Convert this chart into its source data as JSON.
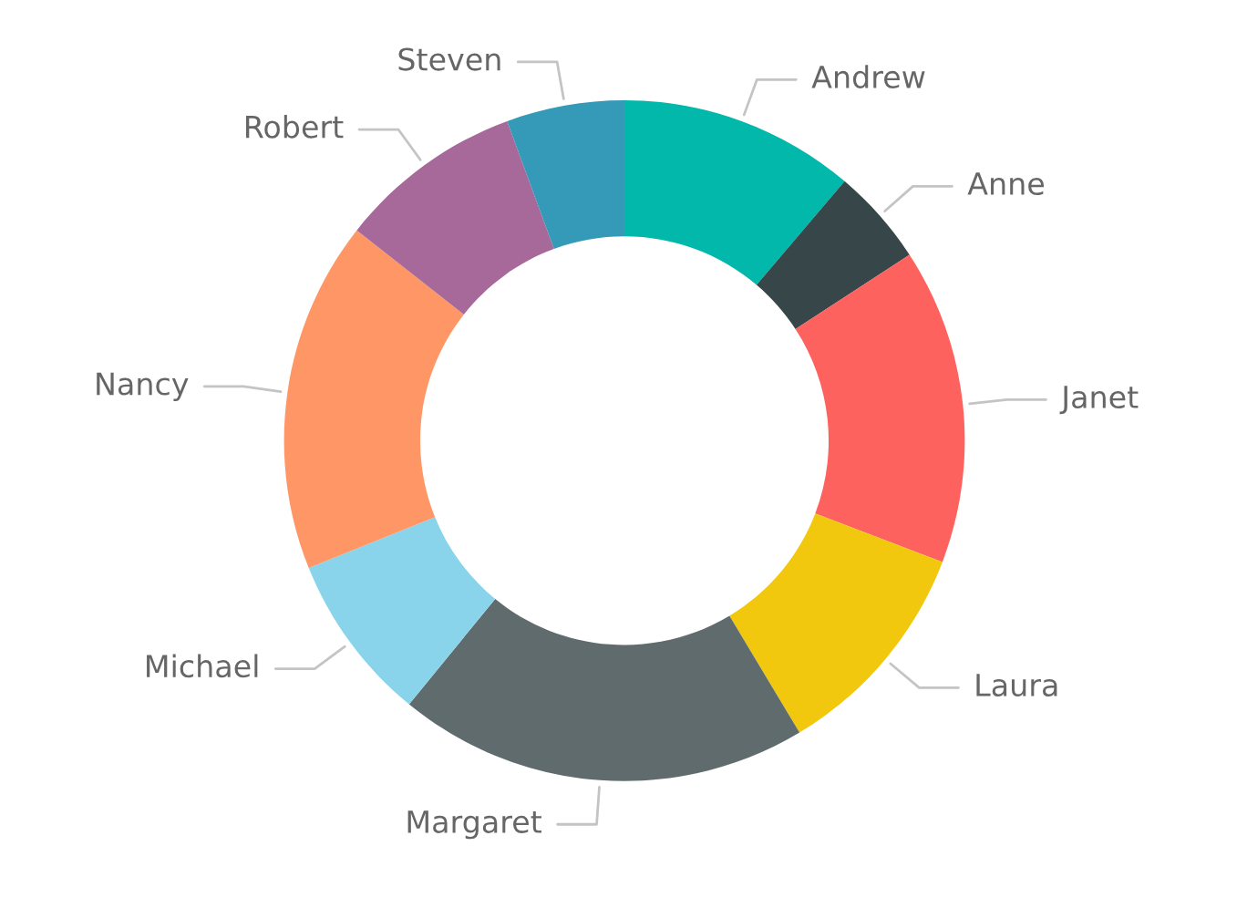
{
  "chart_data": {
    "type": "donut",
    "categories": [
      "Andrew",
      "Anne",
      "Janet",
      "Laura",
      "Margaret",
      "Michael",
      "Nancy",
      "Robert",
      "Steven"
    ],
    "values": [
      11.2,
      4.6,
      15.0,
      10.6,
      19.5,
      8.0,
      16.7,
      8.8,
      5.6
    ],
    "colors": [
      "#01b8aa",
      "#374649",
      "#fd625e",
      "#f2c80f",
      "#5f6b6d",
      "#8ad4eb",
      "#fe9666",
      "#a66999",
      "#3599b8"
    ]
  }
}
